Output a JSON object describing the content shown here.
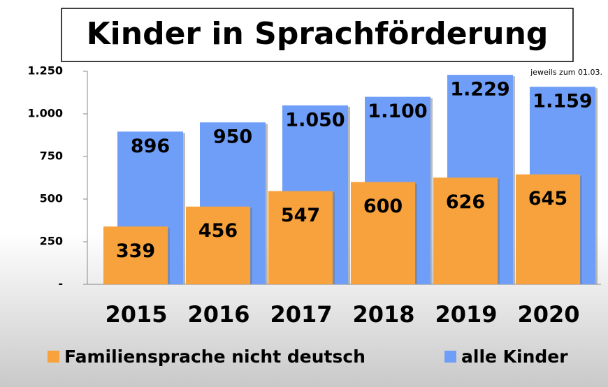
{
  "chart_data": {
    "type": "bar",
    "title": "Kinder in Sprachförderung",
    "annotation": "jeweils zum 01.03.",
    "categories": [
      "2015",
      "2016",
      "2017",
      "2018",
      "2019",
      "2020"
    ],
    "series": [
      {
        "name": "Familiensprache nicht deutsch",
        "color": "#f7a23c",
        "values": [
          339,
          456,
          547,
          600,
          626,
          645
        ]
      },
      {
        "name": "alle Kinder",
        "color": "#6f9ef8",
        "values": [
          896,
          950,
          1050,
          1100,
          1229,
          1159
        ],
        "value_labels": [
          "896",
          "950",
          "1.050",
          "1.100",
          "1.229",
          "1.159"
        ]
      }
    ],
    "ylim": [
      0,
      1250
    ],
    "yticks": [
      {
        "value": 0,
        "label": "-"
      },
      250,
      500,
      750,
      {
        "value": 1000,
        "label": "1.000"
      },
      {
        "value": 1250,
        "label": "1.250"
      }
    ],
    "grid": false
  }
}
